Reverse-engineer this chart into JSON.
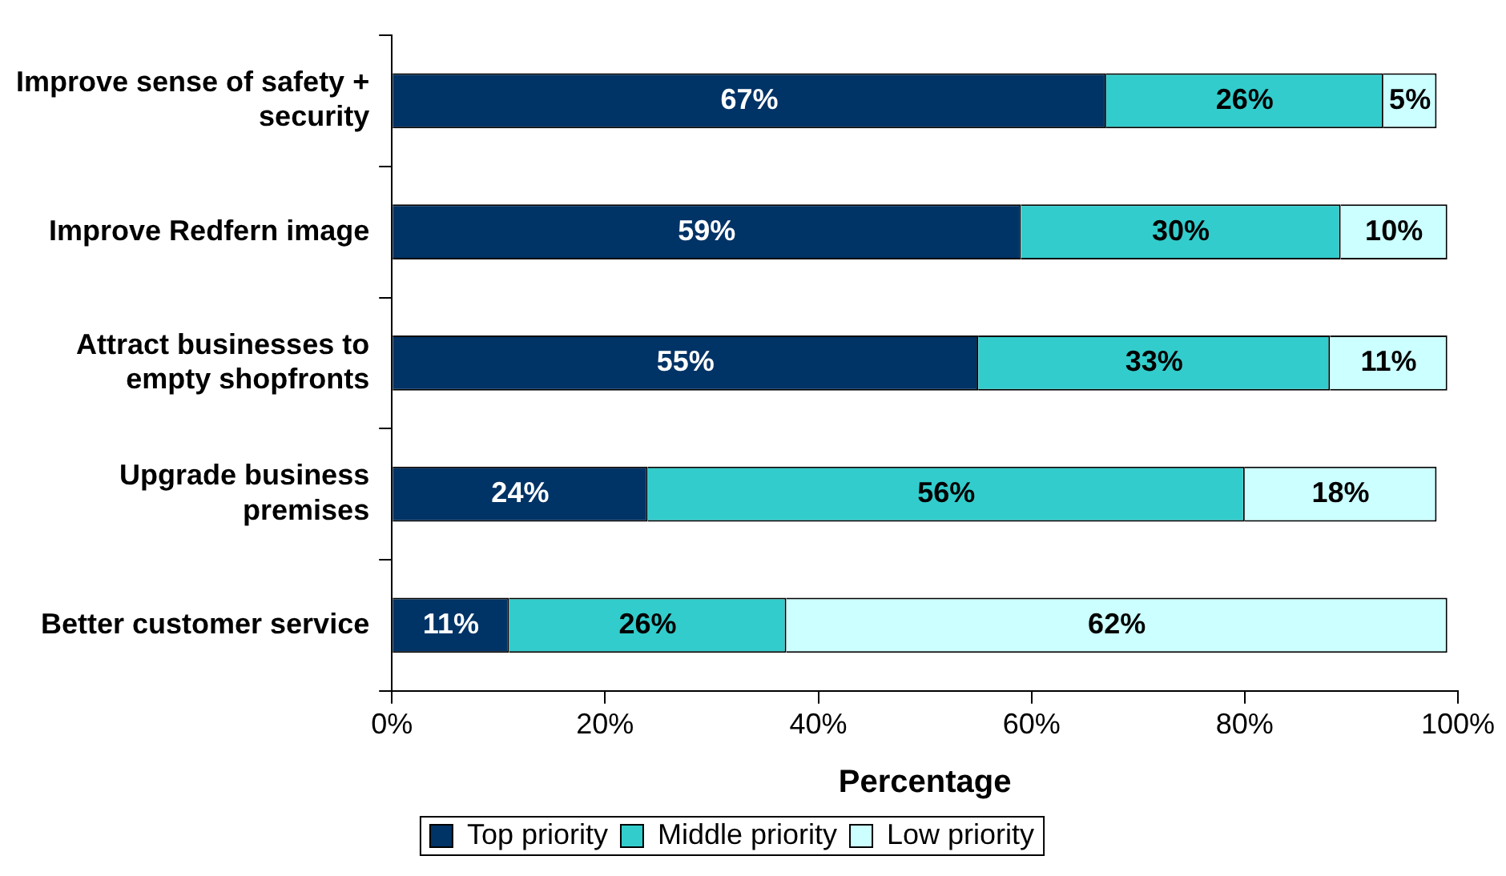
{
  "chart_data": {
    "type": "bar",
    "orientation": "horizontal",
    "stacked": true,
    "categories": [
      "Improve sense of safety + security",
      "Improve Redfern image",
      "Attract businesses to empty shopfronts",
      "Upgrade business premises",
      "Better customer service"
    ],
    "series": [
      {
        "name": "Top priority",
        "color": "#003366",
        "values": [
          67,
          59,
          55,
          24,
          11
        ]
      },
      {
        "name": "Middle priority",
        "color": "#33cccc",
        "values": [
          26,
          30,
          33,
          56,
          26
        ]
      },
      {
        "name": "Low priority",
        "color": "#ccffff",
        "values": [
          5,
          10,
          11,
          18,
          62
        ]
      }
    ],
    "xlabel": "Percentage",
    "xlim": [
      0,
      100
    ],
    "xticks": [
      {
        "value": 0,
        "label": "0%"
      },
      {
        "value": 20,
        "label": "20%"
      },
      {
        "value": 40,
        "label": "40%"
      },
      {
        "value": 60,
        "label": "60%"
      },
      {
        "value": 80,
        "label": "80%"
      },
      {
        "value": 100,
        "label": "100%"
      }
    ],
    "value_labels": [
      [
        "67%",
        "59%",
        "55%",
        "24%",
        "11%"
      ],
      [
        "26%",
        "30%",
        "33%",
        "56%",
        "26%"
      ],
      [
        "5%",
        "10%",
        "11%",
        "18%",
        "62%"
      ]
    ],
    "grid": false,
    "legend": "bottom"
  }
}
